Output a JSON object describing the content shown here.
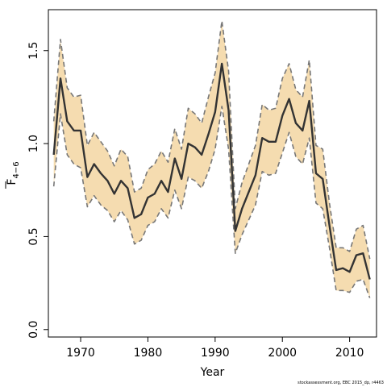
{
  "chart_data": {
    "type": "line",
    "title": "",
    "xlabel": "Year",
    "ylabel_main": "F",
    "ylabel_sub": "4−6",
    "xlim": [
      1965.2,
      2014
    ],
    "ylim": [
      -0.04,
      1.72
    ],
    "x_ticks": [
      1970,
      1980,
      1990,
      2000,
      2010
    ],
    "y_ticks": [
      0.0,
      0.5,
      1.0,
      1.5
    ],
    "y_tick_labels": [
      "0.0",
      "0.5",
      "1.0",
      "1.5"
    ],
    "band_color": "#f5dcb0",
    "line_color": "#333333",
    "bound_color": "#777777",
    "series": [
      {
        "role": "estimate",
        "x": [
          1966,
          1967,
          1968,
          1969,
          1970,
          1971,
          1972,
          1973,
          1974,
          1975,
          1976,
          1977,
          1978,
          1979,
          1980,
          1981,
          1982,
          1983,
          1984,
          1985,
          1986,
          1987,
          1988,
          1989,
          1990,
          1991,
          1992,
          1993,
          1994,
          1995,
          1996,
          1997,
          1998,
          1999,
          2000,
          2001,
          2002,
          2003,
          2004,
          2005,
          2006,
          2007,
          2008,
          2009,
          2010,
          2011,
          2012,
          2013
        ],
        "values": [
          0.94,
          1.35,
          1.12,
          1.07,
          1.07,
          0.82,
          0.89,
          0.84,
          0.8,
          0.73,
          0.8,
          0.76,
          0.6,
          0.62,
          0.71,
          0.73,
          0.8,
          0.74,
          0.92,
          0.81,
          1.0,
          0.98,
          0.94,
          1.05,
          1.17,
          1.43,
          1.18,
          0.53,
          0.65,
          0.74,
          0.83,
          1.03,
          1.01,
          1.01,
          1.15,
          1.24,
          1.11,
          1.07,
          1.23,
          0.84,
          0.81,
          0.56,
          0.32,
          0.33,
          0.31,
          0.4,
          0.41,
          0.27
        ]
      },
      {
        "role": "upper",
        "x": [
          1966,
          1967,
          1968,
          1969,
          1970,
          1971,
          1972,
          1973,
          1974,
          1975,
          1976,
          1977,
          1978,
          1979,
          1980,
          1981,
          1982,
          1983,
          1984,
          1985,
          1986,
          1987,
          1988,
          1989,
          1990,
          1991,
          1992,
          1993,
          1994,
          1995,
          1996,
          1997,
          1998,
          1999,
          2000,
          2001,
          2002,
          2003,
          2004,
          2005,
          2006,
          2007,
          2008,
          2009,
          2010,
          2011,
          2012,
          2013
        ],
        "values": [
          1.12,
          1.56,
          1.3,
          1.25,
          1.26,
          0.99,
          1.06,
          1.01,
          0.96,
          0.88,
          0.97,
          0.93,
          0.74,
          0.76,
          0.86,
          0.89,
          0.96,
          0.9,
          1.08,
          0.97,
          1.19,
          1.16,
          1.11,
          1.25,
          1.38,
          1.66,
          1.39,
          0.65,
          0.79,
          0.89,
          0.99,
          1.21,
          1.18,
          1.19,
          1.35,
          1.43,
          1.29,
          1.25,
          1.45,
          0.99,
          0.97,
          0.68,
          0.44,
          0.44,
          0.42,
          0.54,
          0.56,
          0.38
        ]
      },
      {
        "role": "lower",
        "x": [
          1966,
          1967,
          1968,
          1969,
          1970,
          1971,
          1972,
          1973,
          1974,
          1975,
          1976,
          1977,
          1978,
          1979,
          1980,
          1981,
          1982,
          1983,
          1984,
          1985,
          1986,
          1987,
          1988,
          1989,
          1990,
          1991,
          1992,
          1993,
          1994,
          1995,
          1996,
          1997,
          1998,
          1999,
          2000,
          2001,
          2002,
          2003,
          2004,
          2005,
          2006,
          2007,
          2008,
          2009,
          2010,
          2011,
          2012,
          2013
        ],
        "values": [
          0.77,
          1.16,
          0.94,
          0.89,
          0.87,
          0.66,
          0.72,
          0.67,
          0.64,
          0.58,
          0.64,
          0.59,
          0.46,
          0.48,
          0.56,
          0.58,
          0.65,
          0.6,
          0.75,
          0.65,
          0.82,
          0.8,
          0.76,
          0.85,
          0.97,
          1.2,
          0.97,
          0.41,
          0.51,
          0.59,
          0.67,
          0.85,
          0.83,
          0.84,
          0.95,
          1.06,
          0.93,
          0.89,
          1.03,
          0.68,
          0.65,
          0.44,
          0.21,
          0.21,
          0.2,
          0.26,
          0.27,
          0.17
        ]
      }
    ],
    "credit": "stockassessment.org, EBC 2015_dp, r4463"
  }
}
